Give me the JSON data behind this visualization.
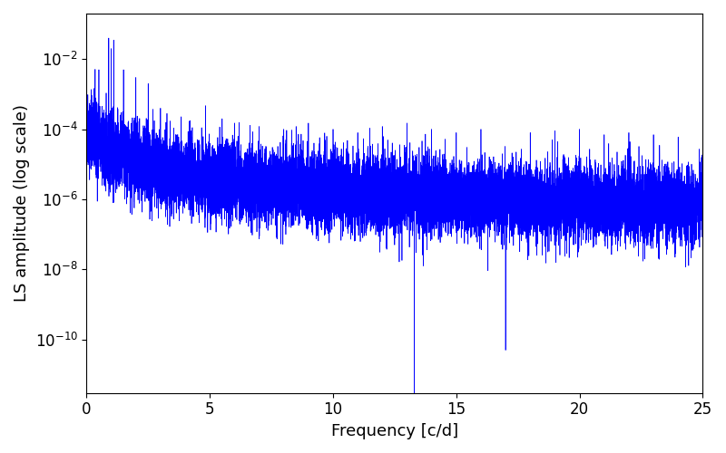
{
  "xlabel": "Frequency [c/d]",
  "ylabel": "LS amplitude (log scale)",
  "xlim": [
    0,
    25
  ],
  "ylim": [
    3e-12,
    0.2
  ],
  "line_color": "#0000ff",
  "background_color": "#ffffff",
  "xlabel_fontsize": 13,
  "ylabel_fontsize": 13,
  "tick_labelsize": 12,
  "seed": 42,
  "n_points": 15000,
  "freq_max": 25.0,
  "base_amplitude": 3e-05,
  "alpha_slope": 1.2,
  "noise_std": 1.2,
  "line_width": 0.5
}
